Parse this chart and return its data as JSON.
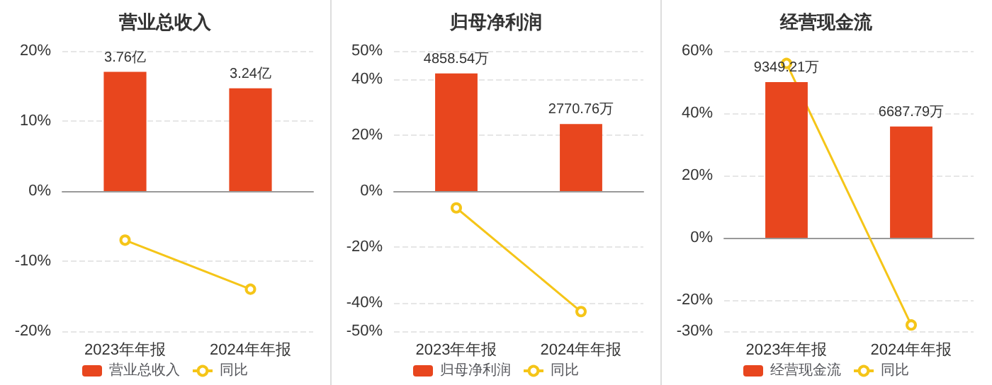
{
  "chart_data": [
    {
      "type": "bar",
      "title": "营业总收入",
      "categories": [
        "2023年年报",
        "2024年年报"
      ],
      "legend": "bottom",
      "grid": "y",
      "marker": "circle",
      "ylim": [
        -20,
        20
      ],
      "yticks": [
        {
          "value": -20,
          "label": "-20%"
        },
        {
          "value": -10,
          "label": "-10%"
        },
        {
          "value": 0,
          "label": "0%"
        },
        {
          "value": 10,
          "label": "10%"
        },
        {
          "value": 20,
          "label": "20%"
        }
      ],
      "y2lim": [
        -4.42,
        4.42
      ],
      "series": [
        {
          "name": "营业总收入",
          "axis": "y2",
          "color": "#e8461e",
          "values": [
            3.76,
            3.24
          ],
          "value_labels": [
            "3.76亿",
            "3.24亿"
          ]
        },
        {
          "name": "同比",
          "type": "line",
          "color": "#f5c518",
          "values": [
            -7,
            -14
          ]
        }
      ]
    },
    {
      "type": "bar",
      "title": "归母净利润",
      "categories": [
        "2023年年报",
        "2024年年报"
      ],
      "legend": "bottom",
      "grid": "y",
      "marker": "circle",
      "ylim": [
        -50,
        50
      ],
      "yticks": [
        {
          "value": -50,
          "label": "-50%"
        },
        {
          "value": -40,
          "label": "-40%"
        },
        {
          "value": -20,
          "label": "-20%"
        },
        {
          "value": 0,
          "label": "0%"
        },
        {
          "value": 20,
          "label": "20%"
        },
        {
          "value": 40,
          "label": "40%"
        },
        {
          "value": 50,
          "label": "50%"
        }
      ],
      "y2lim": [
        -5784,
        5784
      ],
      "series": [
        {
          "name": "归母净利润",
          "axis": "y2",
          "color": "#e8461e",
          "values": [
            4858.54,
            2770.76
          ],
          "value_labels": [
            "4858.54万",
            "2770.76万"
          ]
        },
        {
          "name": "同比",
          "type": "line",
          "color": "#f5c518",
          "values": [
            -6,
            -43
          ]
        }
      ]
    },
    {
      "type": "bar",
      "title": "经营现金流",
      "categories": [
        "2023年年报",
        "2024年年报"
      ],
      "legend": "bottom",
      "grid": "y",
      "marker": "circle",
      "ylim": [
        -30,
        60
      ],
      "yticks": [
        {
          "value": -30,
          "label": "-30%"
        },
        {
          "value": -20,
          "label": "-20%"
        },
        {
          "value": 0,
          "label": "0%"
        },
        {
          "value": 20,
          "label": "20%"
        },
        {
          "value": 40,
          "label": "40%"
        },
        {
          "value": 60,
          "label": "60%"
        }
      ],
      "y2lim": [
        -5609.5,
        11219
      ],
      "series": [
        {
          "name": "经营现金流",
          "axis": "y2",
          "color": "#e8461e",
          "values": [
            9349.21,
            6687.79
          ],
          "value_labels": [
            "9349.21万",
            "6687.79万"
          ]
        },
        {
          "name": "同比",
          "type": "line",
          "color": "#f5c518",
          "values": [
            56,
            -28
          ]
        }
      ]
    }
  ]
}
